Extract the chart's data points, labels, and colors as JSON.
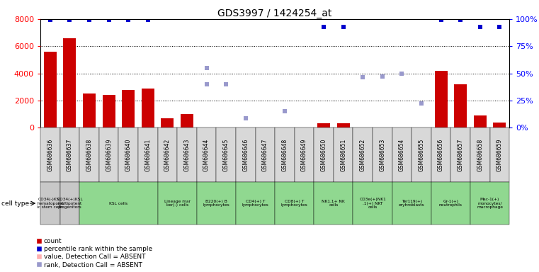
{
  "title": "GDS3997 / 1424254_at",
  "samples": [
    "GSM686636",
    "GSM686637",
    "GSM686638",
    "GSM686639",
    "GSM686640",
    "GSM686641",
    "GSM686642",
    "GSM686643",
    "GSM686644",
    "GSM686645",
    "GSM686646",
    "GSM686647",
    "GSM686648",
    "GSM686649",
    "GSM686650",
    "GSM686651",
    "GSM686652",
    "GSM686653",
    "GSM686654",
    "GSM686655",
    "GSM686656",
    "GSM686657",
    "GSM686658",
    "GSM686659"
  ],
  "count_values": [
    5600,
    6600,
    2500,
    2400,
    2800,
    2900,
    700,
    1000,
    50,
    50,
    50,
    50,
    50,
    50,
    350,
    350,
    50,
    50,
    50,
    50,
    4200,
    3200,
    900,
    400
  ],
  "count_absent": [
    false,
    false,
    false,
    false,
    false,
    false,
    false,
    false,
    true,
    true,
    true,
    true,
    true,
    true,
    false,
    false,
    true,
    true,
    true,
    true,
    false,
    false,
    false,
    false
  ],
  "percentile_rank": [
    99,
    99,
    99,
    99,
    99,
    99,
    null,
    null,
    40,
    40,
    null,
    null,
    null,
    null,
    93,
    93,
    null,
    null,
    null,
    null,
    99,
    99,
    93,
    93
  ],
  "percentile_absent": [
    false,
    false,
    false,
    false,
    false,
    false,
    null,
    null,
    true,
    true,
    null,
    null,
    null,
    null,
    false,
    false,
    null,
    null,
    null,
    null,
    false,
    false,
    false,
    false
  ],
  "rank_absent_values": [
    null,
    null,
    null,
    null,
    null,
    null,
    null,
    null,
    4400,
    null,
    700,
    null,
    1200,
    null,
    null,
    null,
    3700,
    3800,
    4000,
    1800,
    null,
    null,
    null,
    null
  ],
  "cell_type_groups": [
    {
      "start": 0,
      "end": 0,
      "label": "CD34(-)KSL\nhematopoiet\nic stem cells",
      "color": "#c8c8c8"
    },
    {
      "start": 1,
      "end": 1,
      "label": "CD34(+)KSL\nmultipotent\nprogenitors",
      "color": "#c8c8c8"
    },
    {
      "start": 2,
      "end": 5,
      "label": "KSL cells",
      "color": "#90d890"
    },
    {
      "start": 6,
      "end": 7,
      "label": "Lineage mar\nker(-) cells",
      "color": "#90d890"
    },
    {
      "start": 8,
      "end": 9,
      "label": "B220(+) B\nlymphocytes",
      "color": "#90d890"
    },
    {
      "start": 10,
      "end": 11,
      "label": "CD4(+) T\nlymphocytes",
      "color": "#90d890"
    },
    {
      "start": 12,
      "end": 13,
      "label": "CD8(+) T\nlymphocytes",
      "color": "#90d890"
    },
    {
      "start": 14,
      "end": 15,
      "label": "NK1.1+ NK\ncells",
      "color": "#90d890"
    },
    {
      "start": 16,
      "end": 17,
      "label": "CD3e(+)NK1\n.1(+) NKT\ncells",
      "color": "#90d890"
    },
    {
      "start": 18,
      "end": 19,
      "label": "Ter119(+)\neryhroblasts",
      "color": "#90d890"
    },
    {
      "start": 20,
      "end": 21,
      "label": "Gr-1(+)\nneutrophils",
      "color": "#90d890"
    },
    {
      "start": 22,
      "end": 23,
      "label": "Mac-1(+)\nmonocytes/\nmacrophage",
      "color": "#90d890"
    }
  ],
  "sample_box_color": "#d8d8d8",
  "ylim_left": [
    0,
    8000
  ],
  "ylim_right": [
    0,
    100
  ],
  "yticks_left": [
    0,
    2000,
    4000,
    6000,
    8000
  ],
  "yticks_right": [
    0,
    25,
    50,
    75,
    100
  ],
  "bar_color_present": "#cc0000",
  "bar_color_absent": "#ffb0b0",
  "rank_color_present": "#0000cc",
  "rank_color_absent": "#9999cc"
}
